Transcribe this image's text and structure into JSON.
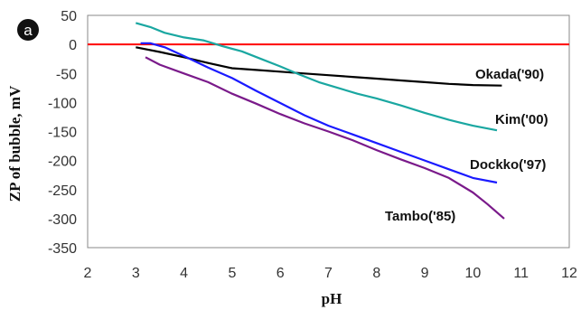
{
  "panel_label": "a",
  "chart_data": {
    "type": "line",
    "xlabel": "pH",
    "ylabel": "ZP of bubble, mV",
    "xlim": [
      2,
      12
    ],
    "ylim": [
      -350,
      50
    ],
    "x_ticks": [
      2,
      3,
      4,
      5,
      6,
      7,
      8,
      9,
      10,
      11,
      12
    ],
    "y_ticks": [
      50,
      0,
      -50,
      -100,
      -150,
      -200,
      -250,
      -300,
      -350
    ],
    "reference_line": {
      "y": 0,
      "color": "#ff0000"
    },
    "grid": false,
    "series": [
      {
        "name": "Okada('90)",
        "color": "#000000",
        "x": [
          3.0,
          3.5,
          4.0,
          4.5,
          5.0,
          5.5,
          6.0,
          6.5,
          7.0,
          7.5,
          8.0,
          8.5,
          9.0,
          9.5,
          10.0,
          10.6
        ],
        "y": [
          -5,
          -13,
          -22,
          -32,
          -41,
          -44,
          -47,
          -50,
          -53,
          -56,
          -59,
          -62,
          -65,
          -68,
          -70,
          -71
        ]
      },
      {
        "name": "Kim('00)",
        "color": "#1aa7a1",
        "x": [
          3.0,
          3.3,
          3.6,
          4.0,
          4.4,
          4.8,
          5.2,
          5.6,
          6.0,
          6.4,
          6.8,
          7.2,
          7.6,
          8.0,
          8.5,
          9.0,
          9.5,
          10.0,
          10.5
        ],
        "y": [
          37,
          30,
          20,
          12,
          7,
          -3,
          -12,
          -25,
          -38,
          -52,
          -65,
          -75,
          -85,
          -93,
          -105,
          -118,
          -130,
          -140,
          -148
        ]
      },
      {
        "name": "Dockko('97)",
        "color": "#1a1aff",
        "x": [
          3.1,
          3.3,
          3.6,
          4.0,
          4.5,
          5.0,
          5.5,
          6.0,
          6.5,
          7.0,
          7.5,
          8.0,
          8.5,
          9.0,
          9.5,
          10.0,
          10.5
        ],
        "y": [
          2,
          2,
          -5,
          -20,
          -40,
          -58,
          -80,
          -101,
          -122,
          -140,
          -155,
          -170,
          -185,
          -200,
          -215,
          -230,
          -238
        ]
      },
      {
        "name": "Tambo('85)",
        "color": "#7a1a8a",
        "x": [
          3.2,
          3.5,
          4.0,
          4.5,
          5.0,
          5.5,
          6.0,
          6.5,
          7.0,
          7.5,
          8.0,
          8.5,
          9.0,
          9.5,
          10.0,
          10.3,
          10.65
        ],
        "y": [
          -22,
          -35,
          -50,
          -65,
          -85,
          -102,
          -120,
          -136,
          -150,
          -165,
          -182,
          -198,
          -213,
          -230,
          -255,
          -275,
          -300
        ]
      }
    ],
    "series_labels": [
      "Okada('90)",
      "Kim('00)",
      "Dockko('97)",
      "Tambo('85)"
    ]
  }
}
